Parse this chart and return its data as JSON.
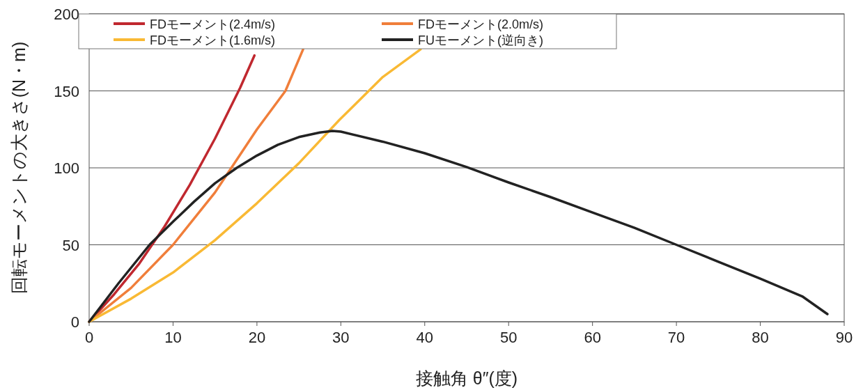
{
  "chart_data": {
    "type": "line",
    "xlabel": "接触角 θ″(度)",
    "ylabel": "回転モーメントの大きさ(N・m)",
    "xlim": [
      0,
      90
    ],
    "ylim": [
      0,
      200
    ],
    "xticks": [
      0,
      10,
      20,
      30,
      40,
      50,
      60,
      70,
      80,
      90
    ],
    "yticks": [
      0,
      50,
      100,
      150,
      200
    ],
    "grid": "y",
    "legend": "top",
    "marker": "none",
    "line_style": "solid",
    "series": [
      {
        "name": "FDモーメント(2.4m/s)",
        "color": "#c0282f",
        "x": [
          0,
          3,
          6,
          9,
          12,
          15,
          18,
          19.7
        ],
        "values": [
          0,
          18,
          38,
          62,
          89,
          119,
          152,
          173
        ]
      },
      {
        "name": "FDモーメント(2.0m/s)",
        "color": "#f07e3a",
        "x": [
          0,
          5,
          10,
          15,
          20,
          23.4,
          25.5
        ],
        "values": [
          0,
          22,
          50,
          84,
          125,
          150,
          177
        ]
      },
      {
        "name": "FDモーメント(1.6m/s)",
        "color": "#f9b934",
        "x": [
          0,
          5,
          10,
          15,
          20,
          25,
          29.8,
          35,
          39.5
        ],
        "values": [
          0,
          15,
          32,
          53,
          77,
          103,
          131,
          159,
          177
        ]
      },
      {
        "name": "FUモーメント(逆向き)",
        "color": "#222222",
        "x": [
          0,
          3.5,
          7.2,
          10,
          12.5,
          15,
          17.6,
          20,
          22.5,
          25,
          27.5,
          29,
          30,
          35,
          40,
          45,
          50,
          55,
          60,
          65,
          70,
          75,
          80,
          85,
          88
        ],
        "values": [
          0,
          25,
          50,
          65,
          78,
          90,
          100,
          108,
          115,
          120,
          123,
          124,
          123.5,
          117,
          109.5,
          100.5,
          90.5,
          81,
          71,
          61,
          50,
          39,
          28,
          16.5,
          5
        ]
      }
    ]
  }
}
